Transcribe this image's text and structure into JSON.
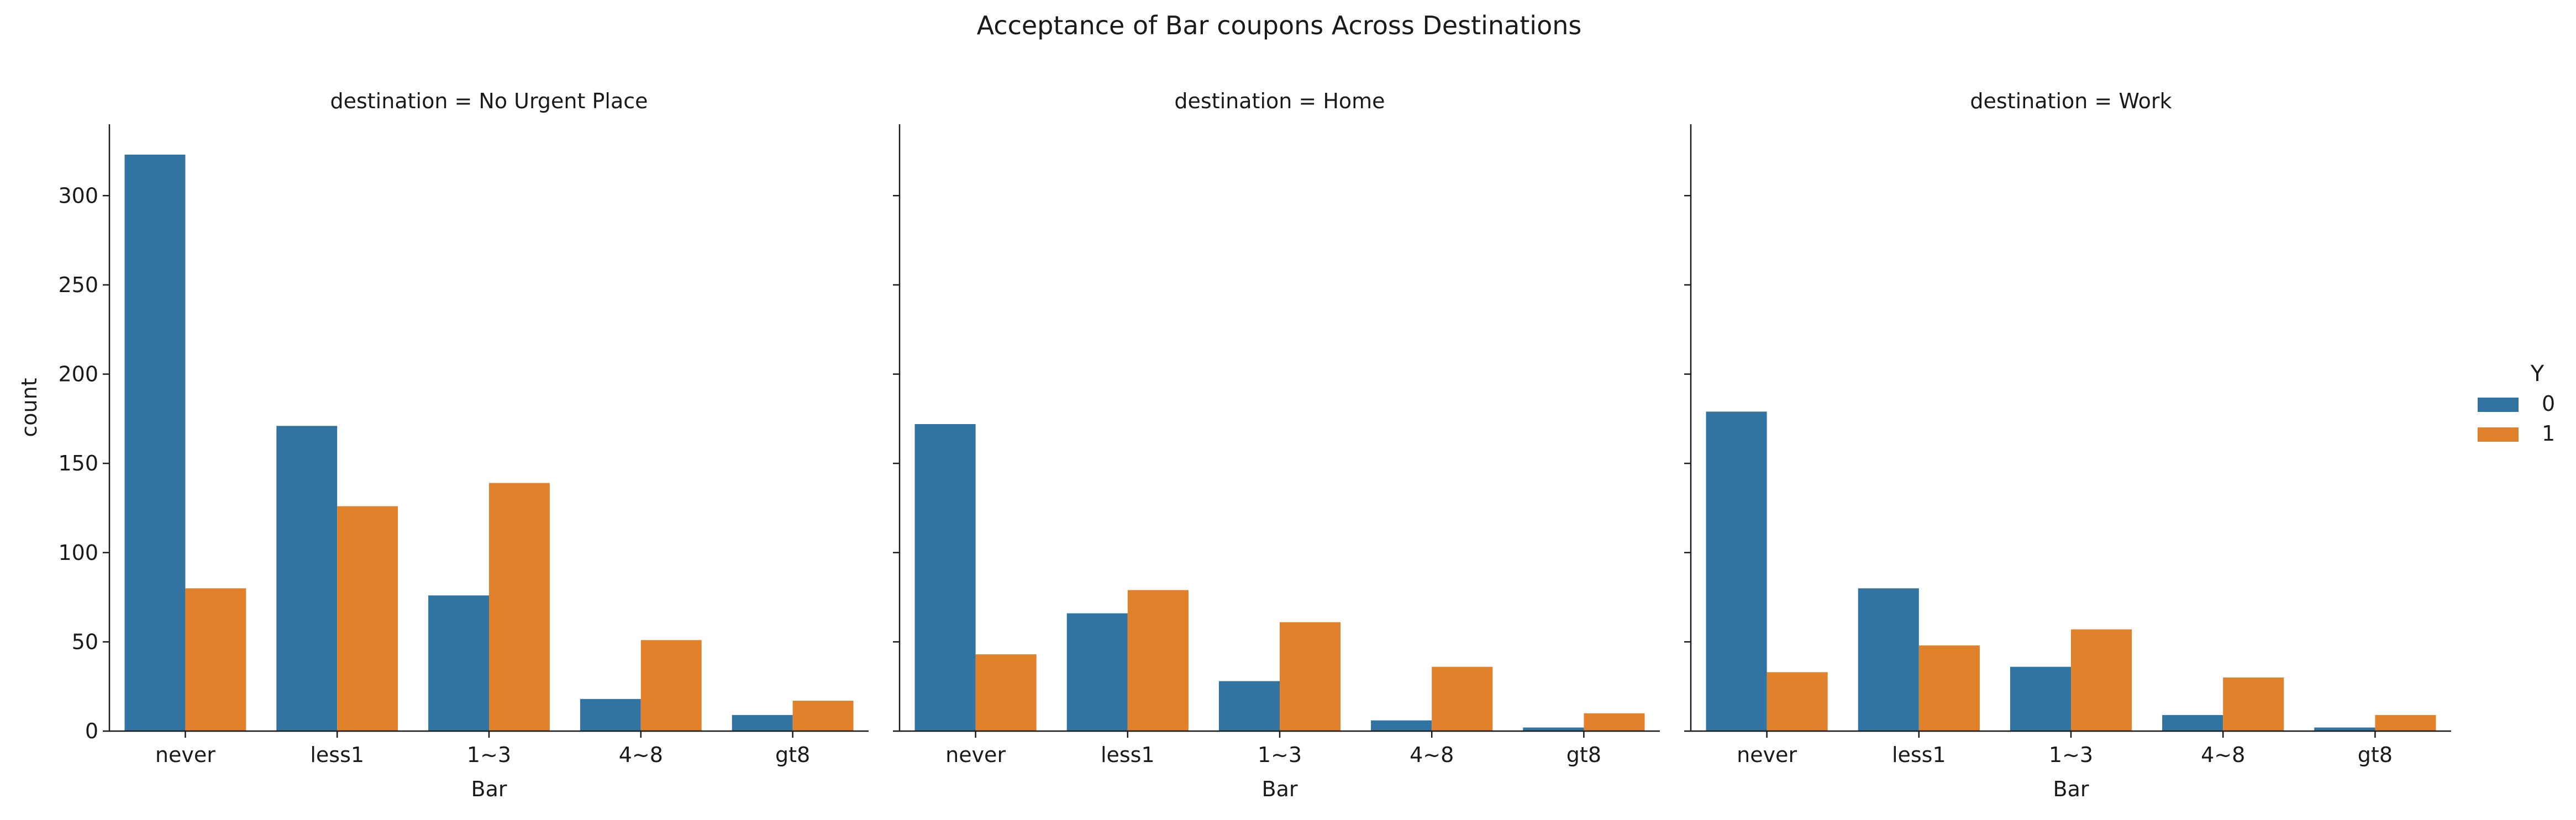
{
  "chart_data": {
    "type": "bar",
    "title": "Acceptance of Bar coupons Across Destinations",
    "ylabel": "count",
    "xlabel": "Bar",
    "ylim": [
      0,
      340
    ],
    "yticks": [
      0,
      50,
      100,
      150,
      200,
      250,
      300
    ],
    "categories": [
      "never",
      "less1",
      "1~3",
      "4~8",
      "gt8"
    ],
    "legend": {
      "title": "Y",
      "position": "right",
      "entries": [
        {
          "label": "0",
          "color": "#3274a1"
        },
        {
          "label": "1",
          "color": "#e1812c"
        }
      ]
    },
    "panels": [
      {
        "title": "destination = No Urgent Place",
        "series": [
          {
            "name": "0",
            "values": [
              323,
              171,
              76,
              18,
              9
            ]
          },
          {
            "name": "1",
            "values": [
              80,
              126,
              139,
              51,
              17
            ]
          }
        ]
      },
      {
        "title": "destination = Home",
        "series": [
          {
            "name": "0",
            "values": [
              172,
              66,
              28,
              6,
              2
            ]
          },
          {
            "name": "1",
            "values": [
              43,
              79,
              61,
              36,
              10
            ]
          }
        ]
      },
      {
        "title": "destination = Work",
        "series": [
          {
            "name": "0",
            "values": [
              179,
              80,
              36,
              9,
              2
            ]
          },
          {
            "name": "1",
            "values": [
              33,
              48,
              57,
              30,
              9
            ]
          }
        ]
      }
    ]
  }
}
